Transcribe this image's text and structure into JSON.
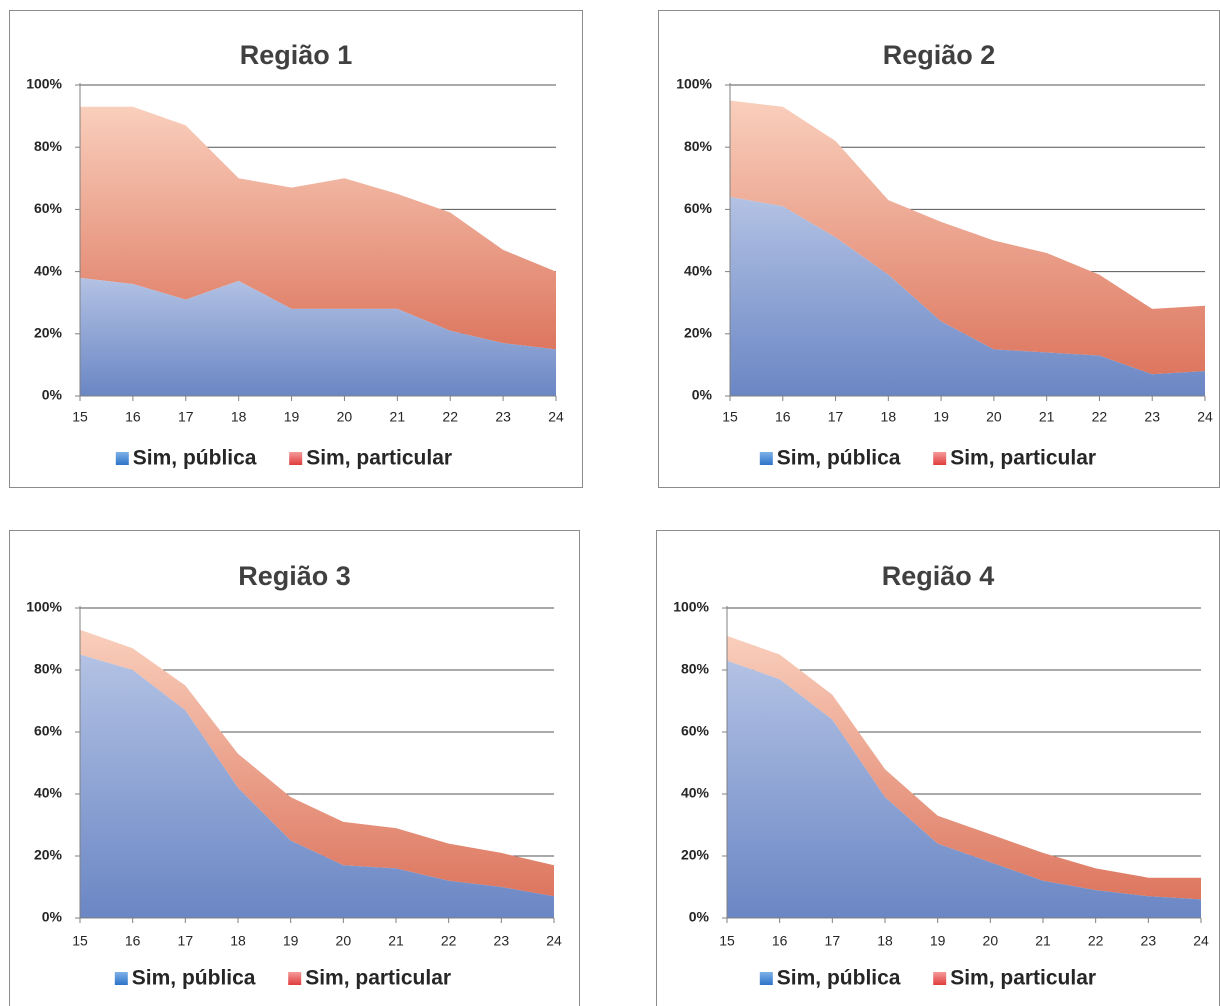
{
  "chart_data": [
    {
      "type": "area",
      "stacked": true,
      "title": "Região 1",
      "x": [
        "15",
        "16",
        "17",
        "18",
        "19",
        "20",
        "21",
        "22",
        "23",
        "24"
      ],
      "yticks": [
        "0%",
        "20%",
        "40%",
        "60%",
        "80%",
        "100%"
      ],
      "ylim": [
        0,
        100
      ],
      "grid": true,
      "legend_position": "bottom",
      "series": [
        {
          "name": "Sim, pública",
          "color": "#6f8cc6",
          "values": [
            38,
            36,
            31,
            37,
            28,
            28,
            28,
            21,
            17,
            15
          ]
        },
        {
          "name": "Sim, particular",
          "color": "#e07b63",
          "values": [
            55,
            57,
            56,
            33,
            39,
            42,
            37,
            38,
            30,
            25
          ]
        }
      ]
    },
    {
      "type": "area",
      "stacked": true,
      "title": "Região 2",
      "x": [
        "15",
        "16",
        "17",
        "18",
        "19",
        "20",
        "21",
        "22",
        "23",
        "24"
      ],
      "yticks": [
        "0%",
        "20%",
        "40%",
        "60%",
        "80%",
        "100%"
      ],
      "ylim": [
        0,
        100
      ],
      "grid": true,
      "legend_position": "bottom",
      "series": [
        {
          "name": "Sim, pública",
          "color": "#6f8cc6",
          "values": [
            64,
            61,
            51,
            39,
            24,
            15,
            14,
            13,
            7,
            8
          ]
        },
        {
          "name": "Sim, particular",
          "color": "#e07b63",
          "values": [
            31,
            32,
            31,
            24,
            32,
            35,
            32,
            26,
            21,
            21
          ]
        }
      ]
    },
    {
      "type": "area",
      "stacked": true,
      "title": "Região 3",
      "x": [
        "15",
        "16",
        "17",
        "18",
        "19",
        "20",
        "21",
        "22",
        "23",
        "24"
      ],
      "yticks": [
        "0%",
        "20%",
        "40%",
        "60%",
        "80%",
        "100%"
      ],
      "ylim": [
        0,
        100
      ],
      "grid": true,
      "legend_position": "bottom",
      "series": [
        {
          "name": "Sim, pública",
          "color": "#6f8cc6",
          "values": [
            85,
            80,
            67,
            42,
            25,
            17,
            16,
            12,
            10,
            7
          ]
        },
        {
          "name": "Sim, particular",
          "color": "#e07b63",
          "values": [
            8,
            7,
            8,
            11,
            14,
            14,
            13,
            12,
            11,
            10
          ]
        }
      ]
    },
    {
      "type": "area",
      "stacked": true,
      "title": "Região 4",
      "x": [
        "15",
        "16",
        "17",
        "18",
        "19",
        "20",
        "21",
        "22",
        "23",
        "24"
      ],
      "yticks": [
        "0%",
        "20%",
        "40%",
        "60%",
        "80%",
        "100%"
      ],
      "ylim": [
        0,
        100
      ],
      "grid": true,
      "legend_position": "bottom",
      "series": [
        {
          "name": "Sim, pública",
          "color": "#6f8cc6",
          "values": [
            83,
            77,
            64,
            39,
            24,
            18,
            12,
            9,
            7,
            6
          ]
        },
        {
          "name": "Sim, particular",
          "color": "#e07b63",
          "values": [
            8,
            8,
            8,
            9,
            9,
            9,
            9,
            7,
            6,
            7
          ]
        }
      ]
    }
  ]
}
